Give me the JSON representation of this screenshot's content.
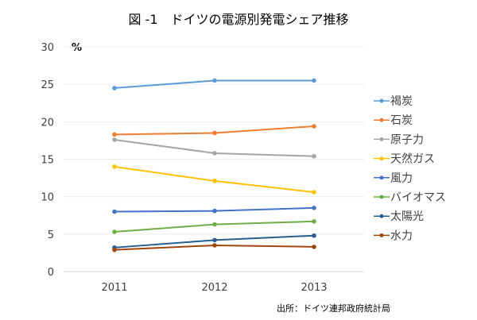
{
  "chart_data": {
    "type": "line",
    "title": "図 -1　ドイツの電源別発電シェア推移",
    "ylabel": "%",
    "xlabel": "",
    "source": "出所：ドイツ連邦政府統計局",
    "categories": [
      "2011",
      "2012",
      "2013"
    ],
    "ylim": [
      0,
      30
    ],
    "yticks": [
      "0",
      "5",
      "10",
      "15",
      "20",
      "25",
      "30"
    ],
    "grid": true,
    "legend_position": "right",
    "series": [
      {
        "name": "褐炭",
        "color": "#5b9bd5",
        "values": [
          24.5,
          25.5,
          25.5
        ]
      },
      {
        "name": "石炭",
        "color": "#ed7d31",
        "values": [
          18.3,
          18.5,
          19.4
        ]
      },
      {
        "name": "原子力",
        "color": "#a5a5a5",
        "values": [
          17.6,
          15.8,
          15.4
        ]
      },
      {
        "name": "天然ガス",
        "color": "#ffc000",
        "values": [
          14.0,
          12.1,
          10.6
        ]
      },
      {
        "name": "風力",
        "color": "#4472c4",
        "values": [
          8.0,
          8.1,
          8.5
        ]
      },
      {
        "name": "バイオマス",
        "color": "#70ad47",
        "values": [
          5.3,
          6.3,
          6.7
        ]
      },
      {
        "name": "太陽光",
        "color": "#255e91",
        "values": [
          3.2,
          4.2,
          4.8
        ]
      },
      {
        "name": "水力",
        "color": "#9e480e",
        "values": [
          2.9,
          3.5,
          3.3
        ]
      }
    ]
  }
}
